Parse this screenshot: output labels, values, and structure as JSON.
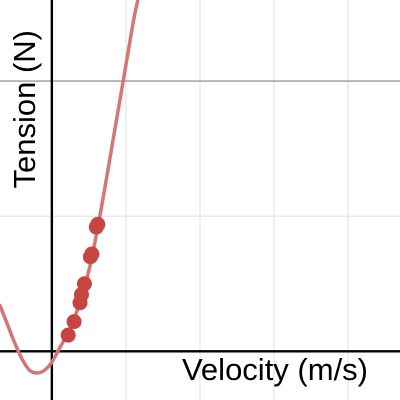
{
  "chart_data": {
    "type": "scatter",
    "xlabel": "Velocity (m/s)",
    "ylabel": "Tension (N)",
    "xlim": [
      -0.35,
      2.35
    ],
    "ylim": [
      -0.18,
      1.3
    ],
    "grid": true,
    "major_grid_y": 1,
    "grid_step": 0.5,
    "colors": {
      "points": "#c74440",
      "curve": "#d47676",
      "axis": "#000000",
      "grid_minor": "#e6e6e6",
      "grid_major": "#9a9a9a"
    },
    "series": [
      {
        "type": "scatter",
        "points": [
          {
            "x": 0.11,
            "y": 0.06
          },
          {
            "x": 0.15,
            "y": 0.11
          },
          {
            "x": 0.19,
            "y": 0.18
          },
          {
            "x": 0.2,
            "y": 0.21
          },
          {
            "x": 0.22,
            "y": 0.25
          },
          {
            "x": 0.26,
            "y": 0.35
          },
          {
            "x": 0.27,
            "y": 0.36
          },
          {
            "x": 0.3,
            "y": 0.46
          },
          {
            "x": 0.31,
            "y": 0.47
          }
        ]
      },
      {
        "type": "line",
        "points": [
          {
            "x": -0.35,
            "y": 0.17
          },
          {
            "x": -0.3,
            "y": 0.1
          },
          {
            "x": -0.25,
            "y": 0.03
          },
          {
            "x": -0.2,
            "y": -0.03
          },
          {
            "x": -0.15,
            "y": -0.07
          },
          {
            "x": -0.1,
            "y": -0.08
          },
          {
            "x": -0.05,
            "y": -0.07
          },
          {
            "x": 0.0,
            "y": -0.04
          },
          {
            "x": 0.05,
            "y": 0.01
          },
          {
            "x": 0.1,
            "y": 0.06
          },
          {
            "x": 0.15,
            "y": 0.12
          },
          {
            "x": 0.2,
            "y": 0.2
          },
          {
            "x": 0.25,
            "y": 0.3
          },
          {
            "x": 0.3,
            "y": 0.43
          },
          {
            "x": 0.35,
            "y": 0.58
          },
          {
            "x": 0.4,
            "y": 0.74
          },
          {
            "x": 0.45,
            "y": 0.9
          },
          {
            "x": 0.5,
            "y": 1.06
          },
          {
            "x": 0.55,
            "y": 1.22
          },
          {
            "x": 0.58,
            "y": 1.3
          }
        ]
      }
    ]
  }
}
